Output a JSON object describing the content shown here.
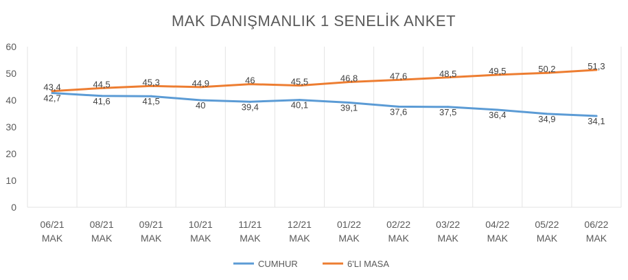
{
  "chart_data": {
    "type": "line",
    "title": "MAK DANIŞMANLIK 1 SENELİK ANKET",
    "categories": [
      [
        "06/21",
        "MAK"
      ],
      [
        "08/21",
        "MAK"
      ],
      [
        "09/21",
        "MAK"
      ],
      [
        "10/21",
        "MAK"
      ],
      [
        "11/21",
        "MAK"
      ],
      [
        "12/21",
        "MAK"
      ],
      [
        "01/22",
        "MAK"
      ],
      [
        "02/22",
        "MAK"
      ],
      [
        "03/22",
        "MAK"
      ],
      [
        "04/22",
        "MAK"
      ],
      [
        "05/22",
        "MAK"
      ],
      [
        "06/22",
        "MAK"
      ]
    ],
    "series": [
      {
        "name": "CUMHUR",
        "color": "#5b9bd5",
        "values": [
          42.7,
          41.6,
          41.5,
          40,
          39.4,
          40.1,
          39.1,
          37.6,
          37.5,
          36.4,
          34.9,
          34.1
        ],
        "labels": [
          "42,7",
          "41,6",
          "41,5",
          "40",
          "39,4",
          "40,1",
          "39,1",
          "37,6",
          "37,5",
          "36,4",
          "34,9",
          "34,1"
        ]
      },
      {
        "name": "6'LI MASA",
        "color": "#ed7d31",
        "values": [
          43.4,
          44.5,
          45.3,
          44.9,
          46,
          45.5,
          46.8,
          47.6,
          48.5,
          49.5,
          50.2,
          51.3
        ],
        "labels": [
          "43,4",
          "44,5",
          "45,3",
          "44,9",
          "46",
          "45,5",
          "46,8",
          "47,6",
          "48,5",
          "49,5",
          "50,2",
          "51,3"
        ]
      }
    ],
    "ylim": [
      0,
      60
    ],
    "yticks": [
      "0",
      "10",
      "20",
      "30",
      "40",
      "50",
      "60"
    ],
    "grid": "vertical",
    "legend_position": "bottom"
  }
}
